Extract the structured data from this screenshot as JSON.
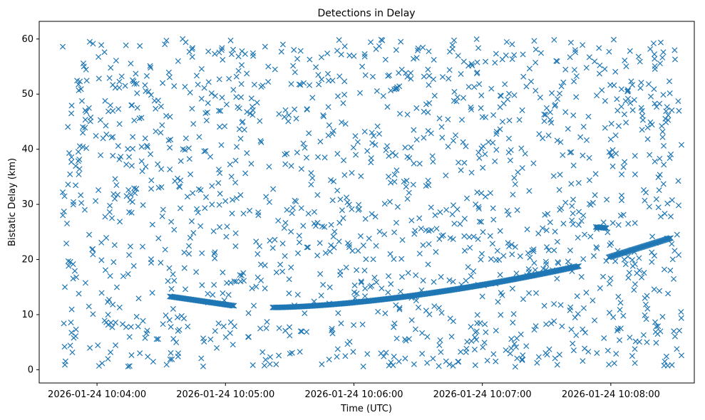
{
  "chart_data": {
    "type": "scatter",
    "title": "Detections in Delay",
    "xlabel": "Time (UTC)",
    "ylabel": "Bistatic Delay (km)",
    "x_is_time": true,
    "xlim": [
      "2026-01-24 10:03:33",
      "2026-01-24 10:08:39"
    ],
    "ylim": [
      -2.4,
      63.2
    ],
    "x_ticks": [
      {
        "value": "2026-01-24 10:04:00",
        "label": "2026-01-24 10:04:00"
      },
      {
        "value": "2026-01-24 10:05:00",
        "label": "2026-01-24 10:05:00"
      },
      {
        "value": "2026-01-24 10:06:00",
        "label": "2026-01-24 10:06:00"
      },
      {
        "value": "2026-01-24 10:07:00",
        "label": "2026-01-24 10:07:00"
      },
      {
        "value": "2026-01-24 10:08:00",
        "label": "2026-01-24 10:08:00"
      }
    ],
    "y_ticks": [
      0,
      10,
      20,
      30,
      40,
      50,
      60
    ],
    "grid": false,
    "legend": "none",
    "marker": "x",
    "color": "#1f77b4",
    "series": [
      {
        "description_none": "",
        "track_segments": [
          {
            "x_start": "2026-01-24 10:04:34",
            "x_end": "2026-01-24 10:05:04",
            "y_start": 13.3,
            "y_end": 11.6
          },
          {
            "x_start": "2026-01-24 10:05:22",
            "x_end": "2026-01-24 10:07:45",
            "y_start": 11.3,
            "y_end": 18.8
          },
          {
            "x_start": "2026-01-24 10:07:53",
            "x_end": "2026-01-24 10:07:58",
            "y_start": 25.9,
            "y_end": 25.7
          },
          {
            "x_start": "2026-01-24 10:07:59",
            "x_end": "2026-01-24 10:08:28",
            "y_start": 20.4,
            "y_end": 23.9
          }
        ],
        "clutter_samples": [
          [
            "2026-01-24 10:03:44",
            58.6
          ],
          [
            "2026-01-24 10:03:44",
            32.2
          ],
          [
            "2026-01-24 10:03:45",
            15.0
          ],
          [
            "2026-01-24 10:03:45",
            0.9
          ],
          [
            "2026-01-24 10:03:47",
            39.3
          ],
          [
            "2026-01-24 10:03:48",
            46.5
          ],
          [
            "2026-01-24 10:03:50",
            6.1
          ],
          [
            "2026-01-24 10:03:52",
            52.3
          ],
          [
            "2026-01-24 10:03:55",
            40.2
          ],
          [
            "2026-01-24 10:03:58",
            21.9
          ],
          [
            "2026-01-24 10:04:02",
            58.9
          ],
          [
            "2026-01-24 10:04:05",
            12.3
          ],
          [
            "2026-01-24 10:04:10",
            47.3
          ],
          [
            "2026-01-24 10:04:15",
            28.6
          ],
          [
            "2026-01-24 10:04:20",
            3.0
          ],
          [
            "2026-01-24 10:04:25",
            54.8
          ],
          [
            "2026-01-24 10:04:30",
            36.4
          ],
          [
            "2026-01-24 10:04:35",
            1.9
          ],
          [
            "2026-01-24 10:04:40",
            60.0
          ],
          [
            "2026-01-24 10:04:45",
            44.6
          ],
          [
            "2026-01-24 10:04:50",
            5.1
          ],
          [
            "2026-01-24 10:04:55",
            57.3
          ],
          [
            "2026-01-24 10:05:00",
            30.6
          ],
          [
            "2026-01-24 10:05:05",
            49.5
          ],
          [
            "2026-01-24 10:05:10",
            39.3
          ],
          [
            "2026-01-24 10:05:15",
            21.0
          ],
          [
            "2026-01-24 10:05:20",
            55.0
          ],
          [
            "2026-01-24 10:05:25",
            46.4
          ],
          [
            "2026-01-24 10:05:30",
            6.2
          ],
          [
            "2026-01-24 10:05:35",
            51.7
          ],
          [
            "2026-01-24 10:05:40",
            33.6
          ],
          [
            "2026-01-24 10:05:45",
            1.0
          ],
          [
            "2026-01-24 10:05:50",
            42.8
          ],
          [
            "2026-01-24 10:05:55",
            27.5
          ],
          [
            "2026-01-24 10:06:00",
            56.9
          ],
          [
            "2026-01-24 10:06:05",
            18.0
          ],
          [
            "2026-01-24 10:06:10",
            40.8
          ],
          [
            "2026-01-24 10:06:15",
            3.1
          ],
          [
            "2026-01-24 10:06:20",
            51.0
          ],
          [
            "2026-01-24 10:06:25",
            31.0
          ],
          [
            "2026-01-24 10:06:30",
            58.3
          ],
          [
            "2026-01-24 10:06:35",
            22.8
          ],
          [
            "2026-01-24 10:06:40",
            45.6
          ],
          [
            "2026-01-24 10:06:45",
            9.3
          ],
          [
            "2026-01-24 10:06:50",
            36.2
          ],
          [
            "2026-01-24 10:06:55",
            55.5
          ],
          [
            "2026-01-24 10:07:00",
            13.3
          ],
          [
            "2026-01-24 10:07:05",
            29.3
          ],
          [
            "2026-01-24 10:07:10",
            48.3
          ],
          [
            "2026-01-24 10:07:15",
            4.7
          ],
          [
            "2026-01-24 10:07:20",
            39.2
          ],
          [
            "2026-01-24 10:07:25",
            58.1
          ],
          [
            "2026-01-24 10:07:30",
            25.3
          ],
          [
            "2026-01-24 10:07:35",
            0.9
          ],
          [
            "2026-01-24 10:07:40",
            43.7
          ],
          [
            "2026-01-24 10:07:45",
            33.9
          ],
          [
            "2026-01-24 10:07:50",
            56.7
          ],
          [
            "2026-01-24 10:07:55",
            14.8
          ],
          [
            "2026-01-24 10:08:00",
            38.8
          ],
          [
            "2026-01-24 10:08:05",
            50.9
          ],
          [
            "2026-01-24 10:08:10",
            2.5
          ],
          [
            "2026-01-24 10:08:15",
            45.3
          ],
          [
            "2026-01-24 10:08:20",
            59.2
          ],
          [
            "2026-01-24 10:08:25",
            18.2
          ],
          [
            "2026-01-24 10:08:28",
            27.8
          ],
          [
            "2026-01-24 10:08:30",
            56.3
          ],
          [
            "2026-01-24 10:08:32",
            7.1
          ],
          [
            "2026-01-24 10:08:33",
            40.8
          ],
          [
            "2026-01-24 10:08:33",
            2.6
          ]
        ],
        "clutter_count_shown_approx": 1400,
        "clutter_y_range": [
          0.5,
          60.0
        ]
      }
    ]
  }
}
